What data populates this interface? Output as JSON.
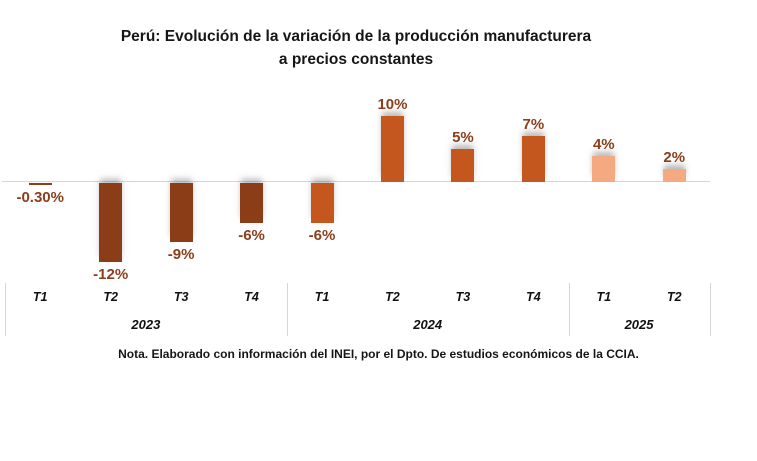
{
  "header": {
    "title_line1": "Perú: Evolución de la variación de la producción manufacturera",
    "title_line2": "a precios constantes"
  },
  "footer": {
    "note": "Nota. Elaborado con información del INEI, por el Dpto. De estudios económicos de la CCIA."
  },
  "chart_data": {
    "type": "bar",
    "title": "Perú: Evolución de la variación de la producción manufacturera a precios constantes",
    "categories": [
      "T1",
      "T2",
      "T3",
      "T4",
      "T1",
      "T2",
      "T3",
      "T4",
      "T1",
      "T2"
    ],
    "values": [
      -0.3,
      -12,
      -9,
      -6,
      -6,
      10,
      5,
      7,
      4,
      2
    ],
    "value_labels": [
      "-0.30%",
      "-12%",
      "-9%",
      "-6%",
      "-6%",
      "10%",
      "5%",
      "7%",
      "4%",
      "2%"
    ],
    "groups": [
      {
        "year": "2023",
        "quarters": [
          "T1",
          "T2",
          "T3",
          "T4"
        ],
        "color": "#8B3D17"
      },
      {
        "year": "2024",
        "quarters": [
          "T1",
          "T2",
          "T3",
          "T4"
        ],
        "color": "#C4571D"
      },
      {
        "year": "2025",
        "quarters": [
          "T1",
          "T2"
        ],
        "color": "#F4A980"
      }
    ],
    "label_color": "#8B3E1A",
    "axis_line_color": "#D6D6D6",
    "xlabel": "",
    "ylabel": "",
    "ylim": [
      -14,
      12
    ],
    "grid": false,
    "legend": false,
    "note": "Nota. Elaborado con información del INEI, por el Dpto. De estudios económicos de la CCIA."
  }
}
